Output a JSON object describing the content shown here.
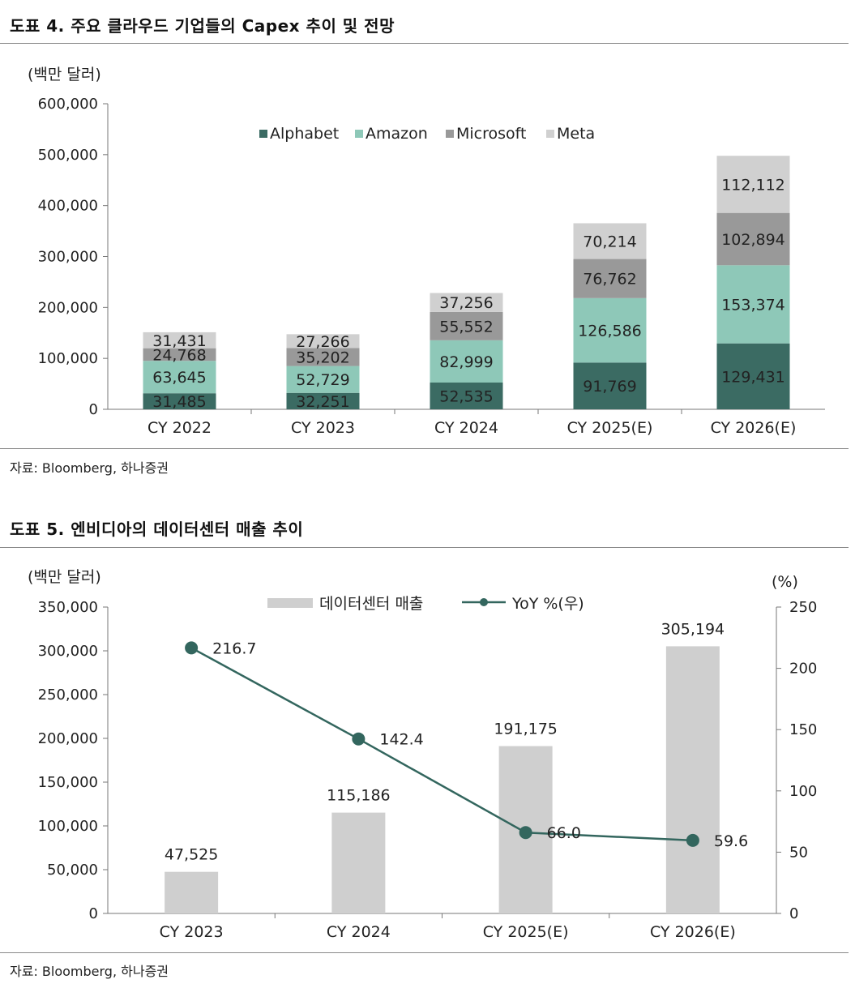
{
  "figure4": {
    "title": "도표 4. 주요 클라우드 기업들의 Capex 추이 및 전망",
    "source": "자료: Bloomberg, 하나증권"
  },
  "figure5": {
    "title": "도표 5. 엔비디아의 데이터센터 매출 추이",
    "source": "자료: Bloomberg, 하나증권"
  },
  "colors": {
    "Alphabet": "#3b6b63",
    "Amazon": "#8ec8b8",
    "Microsoft": "#999999",
    "Meta": "#d0d0d0",
    "revenue_bar": "#cfcfcf",
    "yoy_line": "#33665e"
  },
  "chart_data": [
    {
      "type": "bar",
      "stacked": true,
      "title": "도표 4. 주요 클라우드 기업들의 Capex 추이 및 전망",
      "unit_label": "(백만 달러)",
      "categories": [
        "CY 2022",
        "CY 2023",
        "CY 2024",
        "CY 2025(E)",
        "CY 2026(E)"
      ],
      "series": [
        {
          "name": "Alphabet",
          "values": [
            31485,
            32251,
            52535,
            91769,
            129431
          ],
          "labels": [
            "31,485",
            "32,251",
            "52,535",
            "91,769",
            "129,431"
          ]
        },
        {
          "name": "Amazon",
          "values": [
            63645,
            52729,
            82999,
            126586,
            153374
          ],
          "labels": [
            "63,645",
            "52,729",
            "82,999",
            "126,586",
            "153,374"
          ]
        },
        {
          "name": "Microsoft",
          "values": [
            24768,
            35202,
            55552,
            76762,
            102894
          ],
          "labels": [
            "24,768",
            "35,202",
            "55,552",
            "76,762",
            "102,894"
          ]
        },
        {
          "name": "Meta",
          "values": [
            31431,
            27266,
            37256,
            70214,
            112112
          ],
          "labels": [
            "31,431",
            "27,266",
            "37,256",
            "70,214",
            "112,112"
          ]
        }
      ],
      "ylim": [
        0,
        600000
      ],
      "yticks": [
        0,
        100000,
        200000,
        300000,
        400000,
        500000,
        600000
      ],
      "ytick_labels": [
        "0",
        "100,000",
        "200,000",
        "300,000",
        "400,000",
        "500,000",
        "600,000"
      ],
      "legend": "top"
    },
    {
      "type": "bar",
      "title": "도표 5. 엔비디아의 데이터센터 매출 추이",
      "unit_label_left": "(백만 달러)",
      "unit_label_right": "(%)",
      "categories": [
        "CY 2023",
        "CY 2024",
        "CY 2025(E)",
        "CY 2026(E)"
      ],
      "series": [
        {
          "name": "데이터센터 매출",
          "type": "bar",
          "axis": "left",
          "values": [
            47525,
            115186,
            191175,
            305194
          ],
          "labels": [
            "47,525",
            "115,186",
            "191,175",
            "305,194"
          ]
        },
        {
          "name": "YoY %(우)",
          "type": "line",
          "axis": "right",
          "values": [
            216.7,
            142.4,
            66.0,
            59.6
          ],
          "labels": [
            "216.7",
            "142.4",
            "66.0",
            "59.6"
          ]
        }
      ],
      "ylim_left": [
        0,
        350000
      ],
      "yticks_left": [
        0,
        50000,
        100000,
        150000,
        200000,
        250000,
        300000,
        350000
      ],
      "ytick_labels_left": [
        "0",
        "50,000",
        "100,000",
        "150,000",
        "200,000",
        "250,000",
        "300,000",
        "350,000"
      ],
      "ylim_right": [
        0,
        250
      ],
      "yticks_right": [
        0,
        50,
        100,
        150,
        200,
        250
      ],
      "ytick_labels_right": [
        "0",
        "50",
        "100",
        "150",
        "200",
        "250"
      ],
      "legend": "top"
    }
  ]
}
